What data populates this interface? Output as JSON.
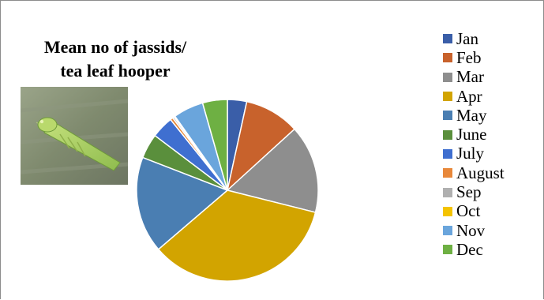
{
  "chart_data": {
    "type": "pie",
    "title": "Mean no of jassids/ tea leaf hooper",
    "title_lines": [
      "Mean no of jassids/",
      "tea leaf hooper"
    ],
    "legend_position": "right",
    "slices": [
      {
        "label": "Jan",
        "value": 3.5,
        "color": "#3a5ea8"
      },
      {
        "label": "Feb",
        "value": 10.0,
        "color": "#c8622c"
      },
      {
        "label": "Mar",
        "value": 16.0,
        "color": "#8e8e8e"
      },
      {
        "label": "Apr",
        "value": 35.5,
        "color": "#d2a400"
      },
      {
        "label": "May",
        "value": 17.5,
        "color": "#4a7eb2"
      },
      {
        "label": "June",
        "value": 4.5,
        "color": "#5a8f3c"
      },
      {
        "label": "July",
        "value": 4.0,
        "color": "#3f6fd0"
      },
      {
        "label": "August",
        "value": 0.5,
        "color": "#e8883a"
      },
      {
        "label": "Sep",
        "value": 0.3,
        "color": "#b0b0b0"
      },
      {
        "label": "Oct",
        "value": 0.2,
        "color": "#f4c300"
      },
      {
        "label": "Nov",
        "value": 5.5,
        "color": "#6aa5dc"
      },
      {
        "label": "Dec",
        "value": 4.5,
        "color": "#6eb043"
      }
    ]
  },
  "image": {
    "subject": "leafhopper-photo"
  }
}
